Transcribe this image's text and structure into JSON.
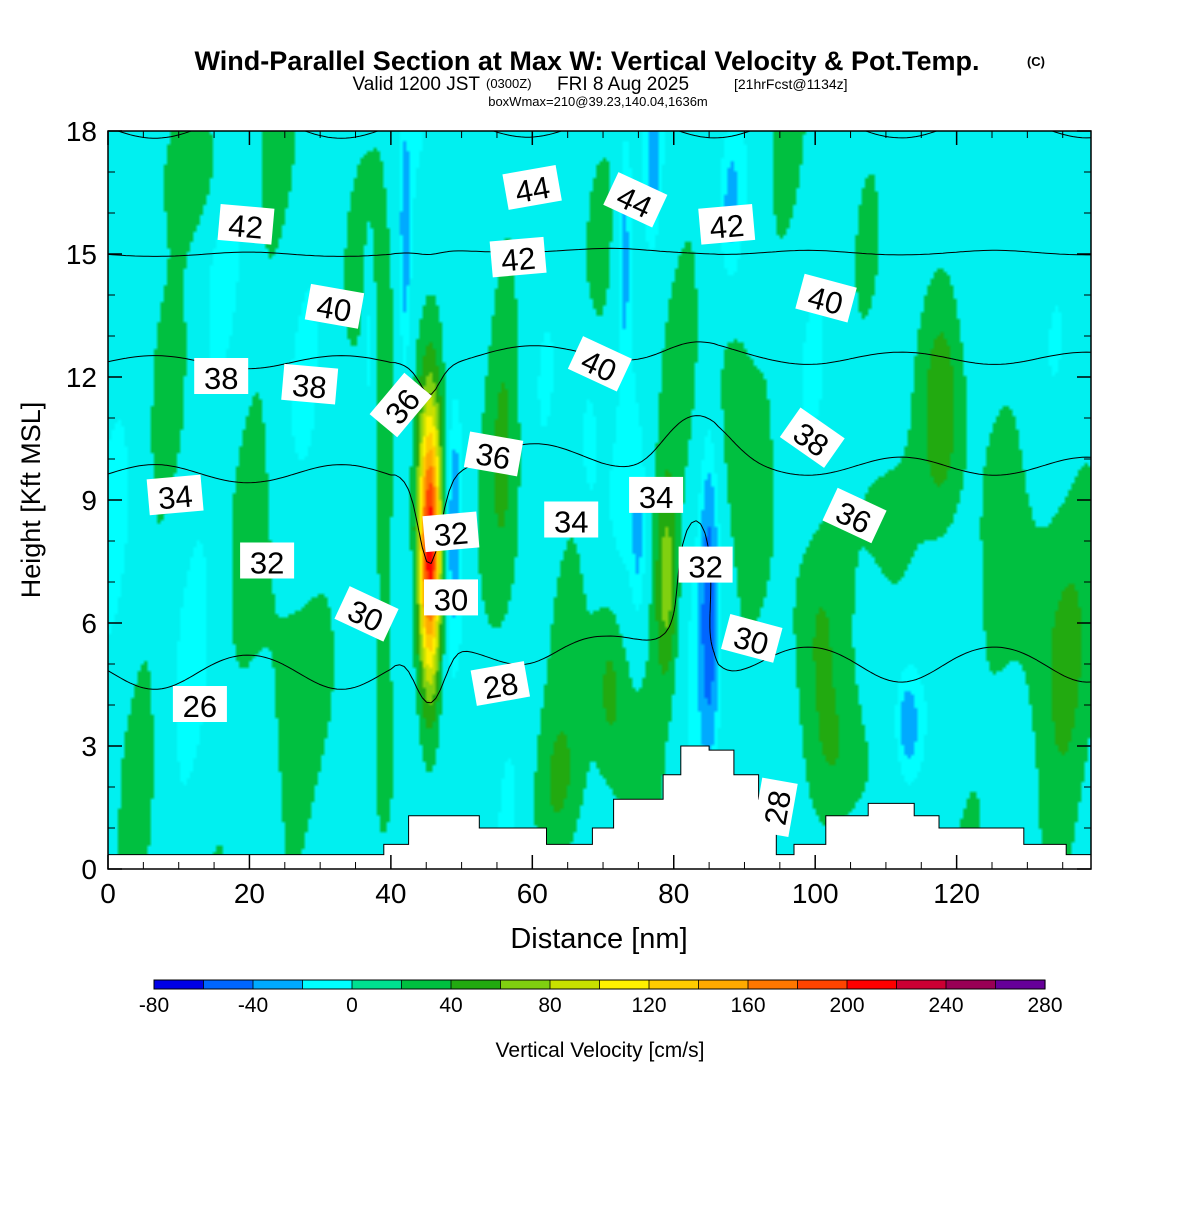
{
  "header": {
    "title": "Wind-Parallel Section at Max W: Vertical Velocity & Pot.Temp.",
    "title_mark": "(C)",
    "valid_prefix": "Valid 1200 JST",
    "valid_utc": "(0300Z)",
    "valid_date": "FRI 8 Aug 2025",
    "valid_fcst": "[21hrFcst@1134z]",
    "boxinfo": "boxWmax=210@39.23,140.04,1636m"
  },
  "chart_data": {
    "type": "heatmap",
    "xlabel": "Distance [nm]",
    "ylabel": "Height [Kft MSL]",
    "xlim": [
      0,
      139
    ],
    "ylim": [
      0,
      18
    ],
    "x_ticks": [
      "0",
      "20",
      "40",
      "60",
      "80",
      "100",
      "120"
    ],
    "y_ticks": [
      "0",
      "3",
      "6",
      "9",
      "12",
      "15",
      "18"
    ],
    "colorbar": {
      "label": "Vertical Velocity [cm/s]",
      "levels": [
        -80,
        -60,
        -40,
        -20,
        0,
        20,
        40,
        60,
        80,
        100,
        120,
        140,
        160,
        180,
        200,
        220,
        240,
        260,
        280
      ],
      "tick_labels": [
        "-80",
        "-40",
        "0",
        "40",
        "80",
        "120",
        "160",
        "200",
        "240",
        "280"
      ],
      "colors": [
        "#0000e6",
        "#0066ff",
        "#00aaff",
        "#00ffff",
        "#00e090",
        "#00c040",
        "#22aa10",
        "#80d010",
        "#c8e000",
        "#fff000",
        "#ffcc00",
        "#ffaa00",
        "#ff7700",
        "#ff4400",
        "#ff0000",
        "#cc0033",
        "#990055",
        "#660099"
      ]
    },
    "base_color": "#00f0f0",
    "updrafts": [
      {
        "x": 45.5,
        "y": 7.8,
        "peak": 210,
        "rx": 1.6,
        "ry": 3.4
      },
      {
        "x": 39,
        "y": 10,
        "peak": 35,
        "rx": 1.5,
        "ry": 6
      },
      {
        "x": 56,
        "y": 11,
        "peak": 30,
        "rx": 2.5,
        "ry": 5
      },
      {
        "x": 71,
        "y": 4.5,
        "peak": 45,
        "rx": 2.5,
        "ry": 2.5
      },
      {
        "x": 79,
        "y": 7,
        "peak": 55,
        "rx": 1.6,
        "ry": 2.5
      },
      {
        "x": 88,
        "y": 12.5,
        "peak": 30,
        "rx": 3,
        "ry": 4
      },
      {
        "x": 118,
        "y": 11,
        "peak": 40,
        "rx": 3,
        "ry": 3
      },
      {
        "x": 110,
        "y": 8.5,
        "peak": 25,
        "rx": 5,
        "ry": 2.5
      },
      {
        "x": 25,
        "y": 3,
        "peak": 25,
        "rx": 4,
        "ry": 5
      },
      {
        "x": 12,
        "y": 17,
        "peak": 25,
        "rx": 6,
        "ry": 1.5
      },
      {
        "x": 132,
        "y": 5,
        "peak": 30,
        "rx": 6,
        "ry": 5
      },
      {
        "x": 100,
        "y": 6,
        "peak": 25,
        "rx": 4,
        "ry": 3
      },
      {
        "x": 64,
        "y": 2,
        "peak": 25,
        "rx": 5,
        "ry": 2
      },
      {
        "x": 103,
        "y": 2.5,
        "peak": 25,
        "rx": 4,
        "ry": 2
      }
    ],
    "downdrafts": [
      {
        "x": 49,
        "y": 8.5,
        "peak": -45,
        "rx": 1.2,
        "ry": 3
      },
      {
        "x": 85,
        "y": 6.5,
        "peak": -50,
        "rx": 1.3,
        "ry": 4
      },
      {
        "x": 113,
        "y": 3.5,
        "peak": -45,
        "rx": 2,
        "ry": 1.5
      },
      {
        "x": 42,
        "y": 15,
        "peak": -35,
        "rx": 0.8,
        "ry": 3
      },
      {
        "x": 37,
        "y": 13,
        "peak": -30,
        "rx": 0.8,
        "ry": 2
      },
      {
        "x": 73,
        "y": 15,
        "peak": -35,
        "rx": 1,
        "ry": 3
      },
      {
        "x": 88,
        "y": 16,
        "peak": -30,
        "rx": 1.5,
        "ry": 2
      },
      {
        "x": 77,
        "y": 17,
        "peak": -30,
        "rx": 0.8,
        "ry": 1.5
      },
      {
        "x": 68,
        "y": 10.5,
        "peak": -25,
        "rx": 1.5,
        "ry": 2
      },
      {
        "x": 75,
        "y": 8,
        "peak": -25,
        "rx": 1,
        "ry": 2
      }
    ],
    "theta_levels": [
      25,
      26,
      27,
      28,
      29,
      30,
      31,
      32,
      33,
      34,
      35,
      36,
      37,
      38,
      39,
      40,
      41,
      42,
      43,
      44,
      45
    ],
    "theta_labels": [
      {
        "text": "26",
        "x": 13,
        "y": 4,
        "angle": 0
      },
      {
        "text": "28",
        "x": 55.5,
        "y": 4.5,
        "angle": -10
      },
      {
        "text": "28",
        "x": 94.5,
        "y": 1.5,
        "angle": -80
      },
      {
        "text": "30",
        "x": 36.5,
        "y": 6.2,
        "angle": 25
      },
      {
        "text": "30",
        "x": 48.5,
        "y": 6.6,
        "angle": 0
      },
      {
        "text": "30",
        "x": 91,
        "y": 5.6,
        "angle": 15
      },
      {
        "text": "32",
        "x": 22.5,
        "y": 7.5,
        "angle": 0
      },
      {
        "text": "32",
        "x": 48.5,
        "y": 8.2,
        "angle": -5
      },
      {
        "text": "32",
        "x": 84.5,
        "y": 7.4,
        "angle": 0
      },
      {
        "text": "34",
        "x": 9.5,
        "y": 9.1,
        "angle": -5
      },
      {
        "text": "34",
        "x": 65.5,
        "y": 8.5,
        "angle": 0
      },
      {
        "text": "34",
        "x": 77.5,
        "y": 9.1,
        "angle": 0
      },
      {
        "text": "36",
        "x": 41.5,
        "y": 11.3,
        "angle": -50
      },
      {
        "text": "36",
        "x": 54.5,
        "y": 10.1,
        "angle": 10
      },
      {
        "text": "36",
        "x": 105.5,
        "y": 8.6,
        "angle": 25
      },
      {
        "text": "38",
        "x": 16,
        "y": 12,
        "angle": 0
      },
      {
        "text": "38",
        "x": 28.5,
        "y": 11.8,
        "angle": 5
      },
      {
        "text": "38",
        "x": 99.5,
        "y": 10.5,
        "angle": 35
      },
      {
        "text": "40",
        "x": 32,
        "y": 13.7,
        "angle": 10
      },
      {
        "text": "40",
        "x": 69.5,
        "y": 12.3,
        "angle": 25
      },
      {
        "text": "40",
        "x": 101.5,
        "y": 13.9,
        "angle": 15
      },
      {
        "text": "42",
        "x": 19.5,
        "y": 15.7,
        "angle": 5
      },
      {
        "text": "42",
        "x": 58,
        "y": 14.9,
        "angle": -5
      },
      {
        "text": "42",
        "x": 87.5,
        "y": 15.7,
        "angle": -5
      },
      {
        "text": "44",
        "x": 60,
        "y": 16.6,
        "angle": -10
      },
      {
        "text": "44",
        "x": 74.5,
        "y": 16.3,
        "angle": 25
      }
    ],
    "terrain_steps": [
      [
        0,
        0.35
      ],
      [
        39,
        0.6
      ],
      [
        42.5,
        1.3
      ],
      [
        52.5,
        1.0
      ],
      [
        62,
        0.6
      ],
      [
        68.5,
        1.0
      ],
      [
        71.5,
        1.7
      ],
      [
        78.5,
        2.3
      ],
      [
        81,
        3.0
      ],
      [
        85,
        2.9
      ],
      [
        88.5,
        2.3
      ],
      [
        92,
        1.7
      ],
      [
        94.5,
        0.35
      ],
      [
        97,
        0.6
      ],
      [
        100,
        0.6
      ],
      [
        101.5,
        1.3
      ],
      [
        107.5,
        1.6
      ],
      [
        114,
        1.3
      ],
      [
        117.5,
        1.0
      ],
      [
        123.5,
        1.0
      ],
      [
        129.5,
        0.6
      ],
      [
        135.5,
        0.35
      ],
      [
        139,
        0.35
      ]
    ]
  }
}
